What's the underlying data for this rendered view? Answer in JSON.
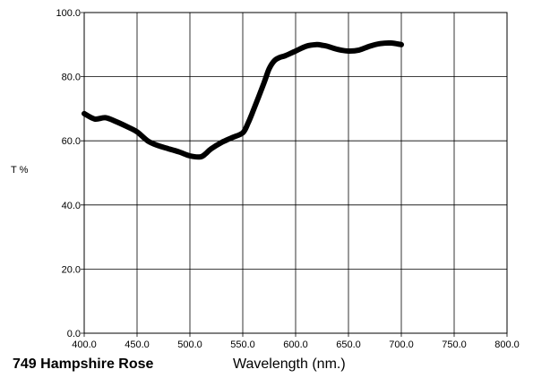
{
  "chart_data": {
    "type": "line",
    "title": "749 Hampshire Rose",
    "xlabel": "Wavelength (nm.)",
    "ylabel": "T %",
    "xlim": [
      400,
      800
    ],
    "ylim": [
      0,
      100
    ],
    "x_ticks": [
      "400.0",
      "450.0",
      "500.0",
      "550.0",
      "600.0",
      "650.0",
      "700.0",
      "750.0",
      "800.0"
    ],
    "y_ticks": [
      "0.0",
      "20.0",
      "40.0",
      "60.0",
      "80.0",
      "100.0"
    ],
    "grid": true,
    "series": [
      {
        "x": [
          400,
          410,
          420,
          430,
          440,
          450,
          460,
          470,
          480,
          490,
          500,
          510,
          515,
          520,
          530,
          540,
          550,
          555,
          560,
          570,
          575,
          580,
          585,
          590,
          600,
          610,
          620,
          625,
          630,
          640,
          650,
          660,
          670,
          680,
          690,
          700
        ],
        "y": [
          68.5,
          66.8,
          67.2,
          66.0,
          64.5,
          62.8,
          60.0,
          58.5,
          57.5,
          56.5,
          55.3,
          55.0,
          56.0,
          57.5,
          59.5,
          61.0,
          62.5,
          65.5,
          69.5,
          78.0,
          82.5,
          85.0,
          86.0,
          86.5,
          88.0,
          89.5,
          90.0,
          89.8,
          89.5,
          88.5,
          88.0,
          88.3,
          89.5,
          90.3,
          90.5,
          90.0
        ],
        "color": "#000000"
      }
    ]
  }
}
